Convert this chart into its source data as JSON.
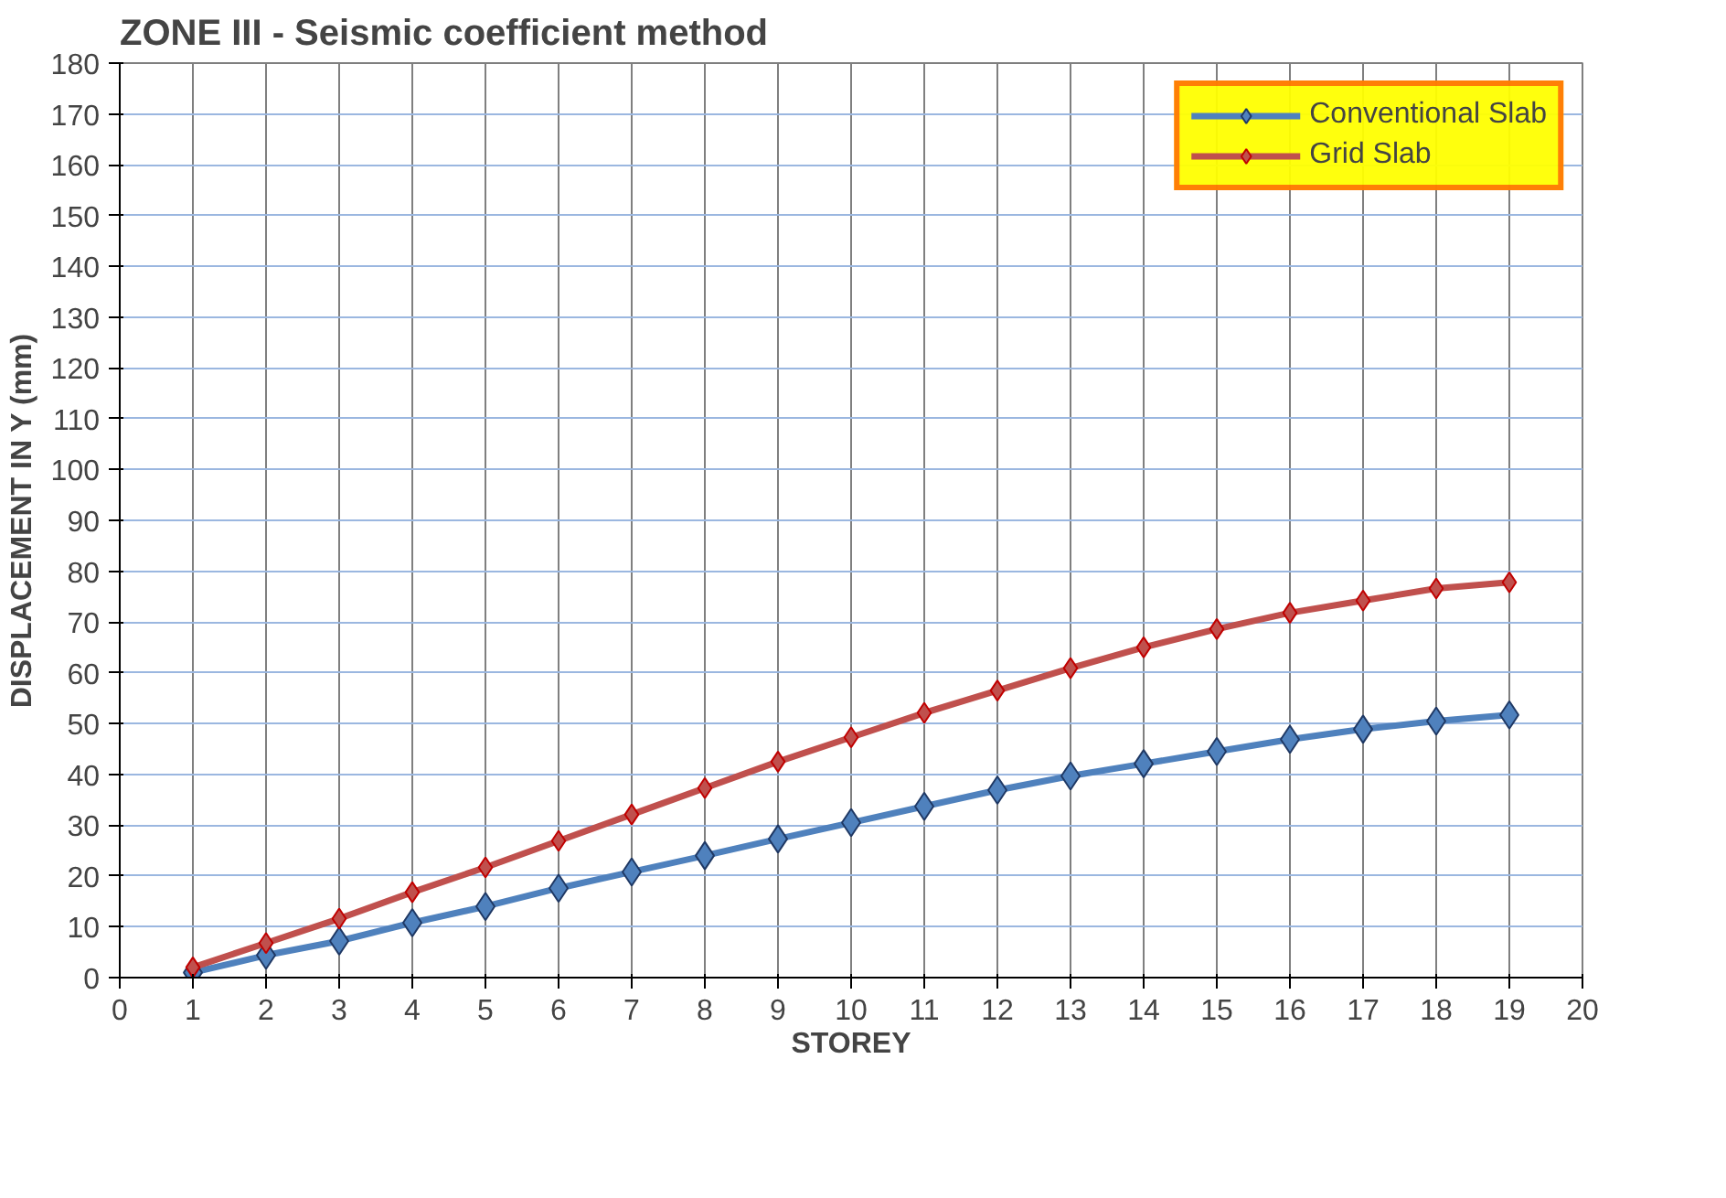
{
  "chart_data": {
    "type": "line",
    "title": "ZONE III - Seismic coefficient method",
    "xlabel": "STOREY",
    "ylabel": "DISPLACEMENT IN Y (mm)",
    "x": [
      1,
      2,
      3,
      4,
      5,
      6,
      7,
      8,
      9,
      10,
      11,
      12,
      13,
      14,
      15,
      16,
      17,
      18,
      19
    ],
    "series": [
      {
        "name": "Conventional Slab",
        "color": "#4f81bd",
        "values": [
          1,
          4.4,
          7.2,
          10.8,
          14,
          17.6,
          20.8,
          24,
          27.3,
          30.5,
          33.7,
          36.9,
          39.7,
          42.1,
          44.5,
          46.9,
          48.9,
          50.5,
          51.7
        ]
      },
      {
        "name": "Grid Slab",
        "color": "#c0504d",
        "values": [
          2,
          6.8,
          11.6,
          16.8,
          21.7,
          26.9,
          32.1,
          37.3,
          42.5,
          47.3,
          52.1,
          56.5,
          60.9,
          65,
          68.6,
          71.8,
          74.2,
          76.6,
          77.8
        ]
      }
    ],
    "xlim": [
      0,
      20
    ],
    "xticks": [
      0,
      1,
      2,
      3,
      4,
      5,
      6,
      7,
      8,
      9,
      10,
      11,
      12,
      13,
      14,
      15,
      16,
      17,
      18,
      19,
      20
    ],
    "ylim": [
      0,
      180
    ],
    "yticks": [
      0,
      10,
      20,
      30,
      40,
      50,
      60,
      70,
      80,
      90,
      100,
      110,
      120,
      130,
      140,
      150,
      160,
      170,
      180
    ],
    "grid": true,
    "legend": "top right",
    "marker": "diamond",
    "line_style": "solid"
  }
}
